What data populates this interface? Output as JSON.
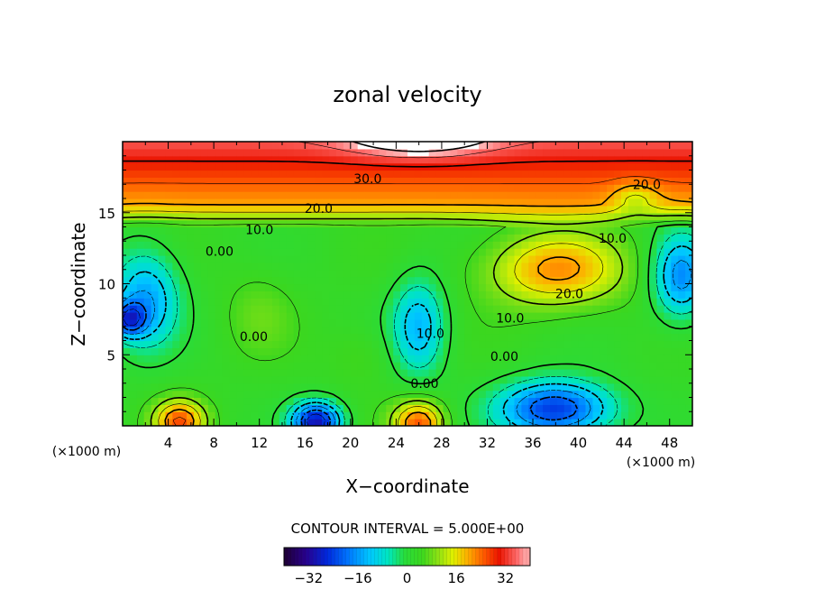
{
  "chart_data": {
    "type": "heatmap",
    "title": "zonal velocity",
    "xlabel": "X−coordinate",
    "ylabel": "Z−coordinate",
    "x_unit_label": "(×1000 m)",
    "z_unit_label": "(×1000 m)",
    "xlim": [
      0,
      50
    ],
    "ylim": [
      0,
      20
    ],
    "x_ticks": [
      "4",
      "8",
      "12",
      "16",
      "20",
      "24",
      "28",
      "32",
      "36",
      "40",
      "44",
      "48"
    ],
    "x_tick_values": [
      4,
      8,
      12,
      16,
      20,
      24,
      28,
      32,
      36,
      40,
      44,
      48
    ],
    "y_ticks": [
      "5",
      "10",
      "15"
    ],
    "y_tick_values": [
      5,
      10,
      15
    ],
    "contour_interval_text": "CONTOUR INTERVAL = 5.000E+00",
    "contour_interval": 5,
    "negative_contours_dashed": true,
    "contour_labels": [
      {
        "text": "30.0",
        "x": 21.5,
        "z": 17.4
      },
      {
        "text": "20.0",
        "x": 17.2,
        "z": 15.3
      },
      {
        "text": "20.0",
        "x": 46.0,
        "z": 17.0
      },
      {
        "text": "20.0",
        "x": 39.2,
        "z": 9.3
      },
      {
        "text": "10.0",
        "x": 12.0,
        "z": 13.8
      },
      {
        "text": "10.0",
        "x": 43.0,
        "z": 13.2
      },
      {
        "text": "10.0",
        "x": 34.0,
        "z": 7.6
      },
      {
        "text": "10.0",
        "x": 27.0,
        "z": 6.5
      },
      {
        "text": "0.00",
        "x": 8.5,
        "z": 12.3
      },
      {
        "text": "0.00",
        "x": 11.5,
        "z": 6.3
      },
      {
        "text": "0.00",
        "x": 33.5,
        "z": 4.9
      },
      {
        "text": "0.00",
        "x": 26.5,
        "z": 3.0
      }
    ],
    "colorbar": {
      "min": -40,
      "max": 40,
      "tick_labels": [
        "−32",
        "−16",
        "0",
        "16",
        "32"
      ],
      "tick_values": [
        -32,
        -16,
        0,
        16,
        32
      ],
      "colors": [
        "#1a0030",
        "#0000a0",
        "#0050ff",
        "#00b4ff",
        "#00e6c8",
        "#28dc28",
        "#78dc14",
        "#dcf000",
        "#ffb400",
        "#ff5000",
        "#e60000",
        "#ffb4b4"
      ]
    },
    "field_features": [
      {
        "kind": "max",
        "x": 26,
        "z": 20.0,
        "value": 42
      },
      {
        "kind": "max",
        "x": 38,
        "z": 11.0,
        "value": 23
      },
      {
        "kind": "max",
        "x": 5,
        "z": 0.5,
        "value": 22
      },
      {
        "kind": "max",
        "x": 26,
        "z": 0.3,
        "value": 21
      },
      {
        "kind": "min",
        "x": 2,
        "z": 9.0,
        "value": -16
      },
      {
        "kind": "min",
        "x": 26,
        "z": 7.0,
        "value": -14
      },
      {
        "kind": "min",
        "x": 49,
        "z": 10.5,
        "value": -15
      },
      {
        "kind": "min",
        "x": 17,
        "z": 0.3,
        "value": -28
      },
      {
        "kind": "min",
        "x": 38,
        "z": 1.5,
        "value": -24
      },
      {
        "kind": "min",
        "x": 0.5,
        "z": 7.5,
        "value": -22
      }
    ]
  }
}
